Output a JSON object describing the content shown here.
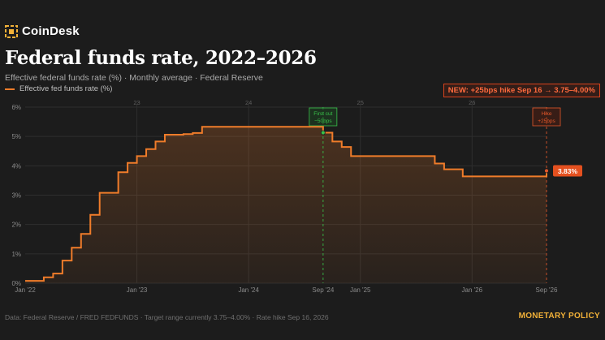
{
  "brand": {
    "name": "CoinDesk",
    "logo_icon": "coindesk-logo-icon"
  },
  "header": {
    "title": "Federal funds rate, 2022–2026",
    "subtitle": "Effective federal funds rate (%) · Monthly average · Federal Reserve"
  },
  "news_badge": "NEW: +25bps hike Sep 16 → 3.75–4.00%",
  "footer": {
    "source": "Data: Federal Reserve / FRED FEDFUNDS · Target range currently 3.75–4.00% · Rate hike Sep 16, 2026",
    "section": "MONETARY POLICY"
  },
  "chart_data": {
    "type": "line",
    "step": true,
    "series": [
      {
        "name": "Effective fed funds rate (%)",
        "color": "#f07c2a",
        "points": [
          [
            "2022-01",
            0.08
          ],
          [
            "2022-02",
            0.08
          ],
          [
            "2022-03",
            0.2
          ],
          [
            "2022-04",
            0.33
          ],
          [
            "2022-05",
            0.77
          ],
          [
            "2022-06",
            1.21
          ],
          [
            "2022-07",
            1.68
          ],
          [
            "2022-08",
            2.33
          ],
          [
            "2022-09",
            3.08
          ],
          [
            "2022-10",
            3.08
          ],
          [
            "2022-11",
            3.78
          ],
          [
            "2022-12",
            4.1
          ],
          [
            "2023-01",
            4.33
          ],
          [
            "2023-02",
            4.57
          ],
          [
            "2023-03",
            4.83
          ],
          [
            "2023-04",
            5.06
          ],
          [
            "2023-05",
            5.06
          ],
          [
            "2023-06",
            5.08
          ],
          [
            "2023-07",
            5.12
          ],
          [
            "2023-08",
            5.33
          ],
          [
            "2023-09",
            5.33
          ],
          [
            "2023-10",
            5.33
          ],
          [
            "2023-11",
            5.33
          ],
          [
            "2023-12",
            5.33
          ],
          [
            "2024-01",
            5.33
          ],
          [
            "2024-02",
            5.33
          ],
          [
            "2024-03",
            5.33
          ],
          [
            "2024-04",
            5.33
          ],
          [
            "2024-05",
            5.33
          ],
          [
            "2024-06",
            5.33
          ],
          [
            "2024-07",
            5.33
          ],
          [
            "2024-08",
            5.33
          ],
          [
            "2024-09",
            5.13
          ],
          [
            "2024-10",
            4.83
          ],
          [
            "2024-11",
            4.64
          ],
          [
            "2024-12",
            4.33
          ],
          [
            "2025-01",
            4.33
          ],
          [
            "2025-02",
            4.33
          ],
          [
            "2025-03",
            4.33
          ],
          [
            "2025-04",
            4.33
          ],
          [
            "2025-05",
            4.33
          ],
          [
            "2025-06",
            4.33
          ],
          [
            "2025-07",
            4.33
          ],
          [
            "2025-08",
            4.33
          ],
          [
            "2025-09",
            4.08
          ],
          [
            "2025-10",
            3.88
          ],
          [
            "2025-11",
            3.88
          ],
          [
            "2025-12",
            3.64
          ],
          [
            "2026-01",
            3.64
          ],
          [
            "2026-02",
            3.64
          ],
          [
            "2026-03",
            3.64
          ],
          [
            "2026-04",
            3.64
          ],
          [
            "2026-05",
            3.64
          ],
          [
            "2026-06",
            3.64
          ],
          [
            "2026-07",
            3.64
          ],
          [
            "2026-08",
            3.64
          ],
          [
            "2026-09",
            3.83
          ]
        ]
      }
    ],
    "x_range": [
      "2022-01",
      "2026-09"
    ],
    "x_ticks": [
      {
        "x": "2022-01",
        "label": "Jan '22"
      },
      {
        "x": "2023-01",
        "label": "Jan '23"
      },
      {
        "x": "2024-01",
        "label": "Jan '24"
      },
      {
        "x": "2024-09",
        "label": "Sep '24"
      },
      {
        "x": "2025-01",
        "label": "Jan '25"
      },
      {
        "x": "2026-01",
        "label": "Jan '26"
      },
      {
        "x": "2026-09",
        "label": "Sep '26"
      }
    ],
    "year_labels": [
      {
        "x": "2023-01",
        "label": "23"
      },
      {
        "x": "2024-01",
        "label": "24"
      },
      {
        "x": "2025-01",
        "label": "25"
      },
      {
        "x": "2026-01",
        "label": "26"
      }
    ],
    "y_range": [
      0,
      6
    ],
    "y_ticks": [
      {
        "y": 0,
        "label": "0%"
      },
      {
        "y": 1,
        "label": "1%"
      },
      {
        "y": 2,
        "label": "2%"
      },
      {
        "y": 3,
        "label": "3%"
      },
      {
        "y": 4,
        "label": "4%"
      },
      {
        "y": 5,
        "label": "5%"
      },
      {
        "y": 6,
        "label": "6%"
      }
    ],
    "grid": true,
    "annotations": [
      {
        "x": "2024-09",
        "y": 5.13,
        "lines": [
          "First cut",
          "−50bps"
        ],
        "color": "#39c14a"
      },
      {
        "x": "2026-09",
        "y": 3.83,
        "lines": [
          "Hike",
          "+25bps"
        ],
        "color": "#e2572a"
      }
    ],
    "end_label": {
      "x": "2026-09",
      "y": 3.83,
      "text": "3.83%"
    }
  }
}
